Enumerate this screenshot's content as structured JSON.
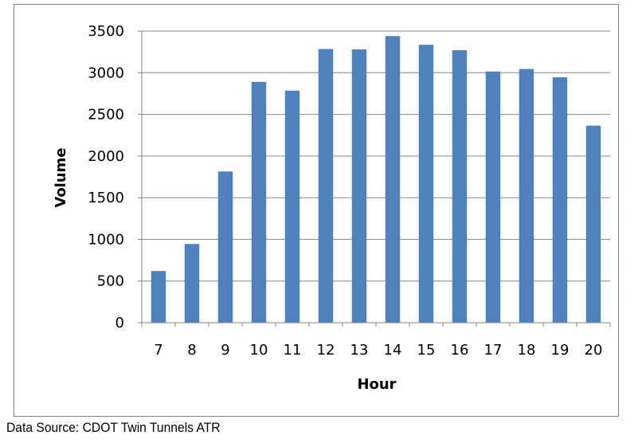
{
  "chart_data": {
    "type": "bar",
    "title": "",
    "xlabel": "Hour",
    "ylabel": "Volume",
    "categories": [
      "7",
      "8",
      "9",
      "10",
      "11",
      "12",
      "13",
      "14",
      "15",
      "16",
      "17",
      "18",
      "19",
      "20"
    ],
    "values": [
      620,
      945,
      1815,
      2890,
      2785,
      3285,
      3280,
      3440,
      3335,
      3270,
      3015,
      3045,
      2945,
      2365
    ],
    "ylim": [
      0,
      3500
    ],
    "yticks": [
      "0",
      "500",
      "1000",
      "1500",
      "2000",
      "2500",
      "3000",
      "3500"
    ],
    "grid": true,
    "legend": "none",
    "bar_color": "#4f81bd",
    "gridline_color": "#868686"
  },
  "footer": {
    "source": "Data Source: CDOT Twin Tunnels ATR"
  }
}
